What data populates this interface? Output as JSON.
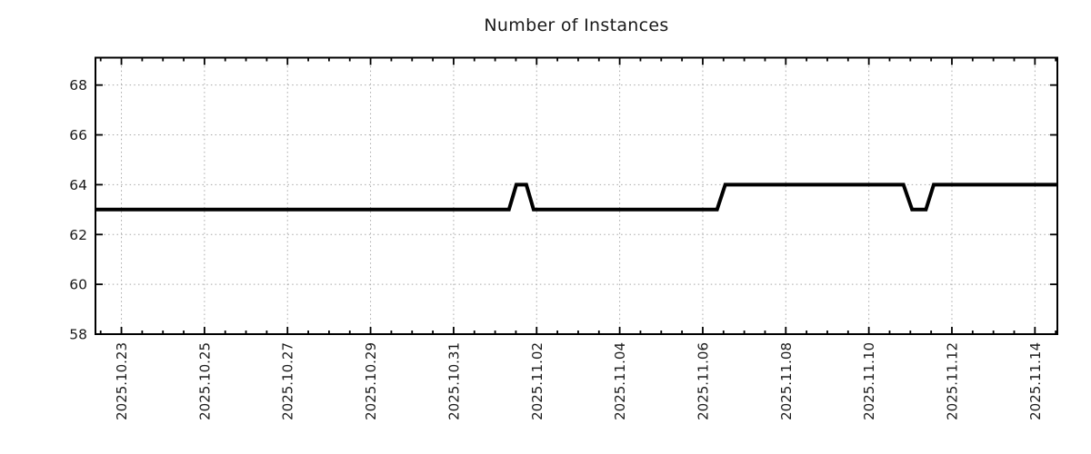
{
  "figure": {
    "title": "Number of Instances"
  },
  "colors": {
    "line": "#000000",
    "axis": "#000000",
    "grid": "#a8a8a8",
    "text": "#1a1a1a",
    "background": "#ffffff"
  },
  "chart_data": {
    "type": "line",
    "title": "Number of Instances",
    "xlabel": "",
    "ylabel": "",
    "grid": true,
    "legend": "none",
    "x_axis": {
      "kind": "datetime",
      "base_date": "2025-10-23",
      "tick_labels": [
        "2025.10.23",
        "2025.10.25",
        "2025.10.27",
        "2025.10.29",
        "2025.10.31",
        "2025.11.02",
        "2025.11.04",
        "2025.11.06",
        "2025.11.08",
        "2025.11.10",
        "2025.11.12",
        "2025.11.14"
      ],
      "major_interval_days": 2,
      "minor_interval_days": 0.5,
      "range_days": [
        -0.625,
        22.54
      ]
    },
    "y_axis": {
      "ticks": [
        58,
        60,
        62,
        64,
        66,
        68
      ],
      "tick_labels": [
        "58",
        "60",
        "62",
        "64",
        "66",
        "68"
      ],
      "range": [
        58,
        69.1
      ]
    },
    "series": [
      {
        "name": "instances",
        "color": "#000000",
        "points": [
          [
            "2025-10-22T09:00",
            63
          ],
          [
            "2025-11-01T08:00",
            63
          ],
          [
            "2025-11-01T12:15",
            64
          ],
          [
            "2025-11-01T18:00",
            64
          ],
          [
            "2025-11-01T22:15",
            63
          ],
          [
            "2025-11-06T08:15",
            63
          ],
          [
            "2025-11-06T13:00",
            64
          ],
          [
            "2025-11-10T20:00",
            64
          ],
          [
            "2025-11-11T01:00",
            63
          ],
          [
            "2025-11-11T09:00",
            63
          ],
          [
            "2025-11-11T13:30",
            64
          ],
          [
            "2025-11-14T13:00",
            64
          ]
        ]
      }
    ]
  }
}
